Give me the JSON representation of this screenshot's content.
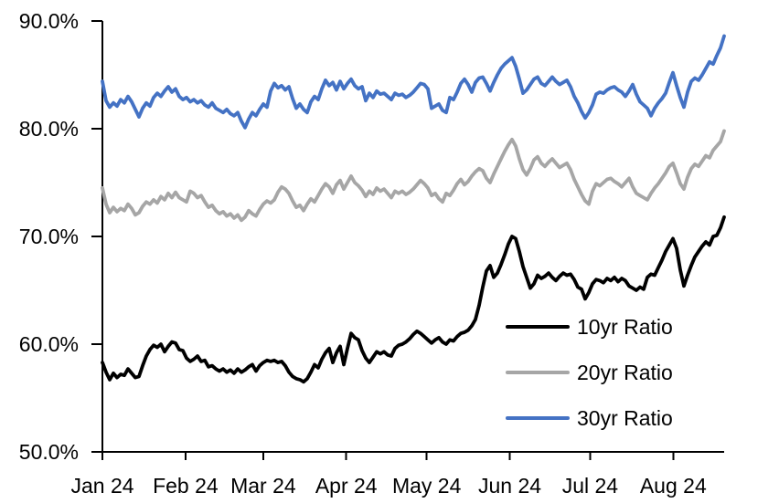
{
  "chart_data": {
    "type": "line",
    "title": "",
    "xlabel": "",
    "ylabel": "",
    "grid": false,
    "background_color": "#ffffff",
    "axis_color": "#000000",
    "x_axis": {
      "tick_labels": [
        "Jan 24",
        "Feb 24",
        "Mar 24",
        "Apr 24",
        "May 24",
        "Jun 24",
        "Jul 24",
        "Aug 24"
      ],
      "tick_days": [
        0,
        31,
        60,
        91,
        121,
        152,
        182,
        213
      ],
      "domain_days": [
        0,
        232
      ],
      "unit": "days since Jan 1 2024"
    },
    "y_axis": {
      "tick_labels": [
        "90.0%",
        "80.0%",
        "70.0%",
        "60.0%",
        "50.0%"
      ],
      "tick_values": [
        90,
        80,
        70,
        60,
        50
      ],
      "ylim": [
        50,
        90
      ],
      "unit": "%"
    },
    "x_sampling": {
      "start_day": 0,
      "end_day": 232,
      "points": 171,
      "note": "values evenly spaced in time"
    },
    "legend": {
      "position": "inside-lower-right",
      "entries": [
        "10yr Ratio",
        "20yr Ratio",
        "30yr Ratio"
      ]
    },
    "series": [
      {
        "name": "10yr Ratio",
        "color": "#000000",
        "values": [
          58.3,
          57.4,
          56.7,
          57.3,
          56.9,
          57.2,
          57.1,
          57.7,
          57.3,
          56.9,
          57.0,
          58.0,
          58.9,
          59.5,
          59.9,
          59.7,
          60.0,
          59.3,
          59.8,
          60.2,
          60.1,
          59.5,
          59.4,
          58.7,
          58.4,
          58.6,
          58.9,
          58.4,
          58.5,
          57.9,
          58.0,
          57.7,
          57.5,
          57.7,
          57.4,
          57.6,
          57.3,
          57.7,
          57.4,
          57.6,
          57.9,
          58.1,
          57.5,
          58.0,
          58.3,
          58.5,
          58.4,
          58.5,
          58.3,
          58.4,
          58.0,
          57.4,
          57.0,
          56.8,
          56.7,
          56.5,
          56.8,
          57.4,
          58.1,
          57.8,
          58.6,
          59.2,
          59.6,
          58.3,
          59.2,
          59.8,
          58.1,
          59.6,
          61.0,
          60.6,
          60.4,
          59.4,
          58.7,
          58.3,
          58.8,
          59.3,
          59.1,
          59.3,
          59.0,
          58.9,
          59.6,
          59.9,
          60.0,
          60.2,
          60.5,
          60.9,
          61.2,
          61.0,
          60.7,
          60.4,
          60.1,
          60.4,
          60.6,
          60.2,
          60.0,
          60.4,
          60.3,
          60.7,
          61.0,
          61.1,
          61.3,
          61.7,
          62.3,
          63.6,
          65.3,
          66.8,
          67.3,
          66.2,
          66.6,
          67.4,
          68.3,
          69.3,
          70.0,
          69.8,
          68.6,
          67.2,
          66.2,
          65.2,
          65.6,
          66.4,
          66.1,
          66.3,
          66.6,
          66.2,
          65.9,
          66.3,
          66.6,
          66.4,
          66.5,
          66.0,
          65.3,
          65.1,
          64.2,
          64.8,
          65.6,
          66.0,
          65.9,
          65.7,
          66.1,
          65.9,
          66.2,
          65.8,
          66.1,
          65.9,
          65.4,
          65.2,
          65.0,
          65.3,
          65.1,
          66.2,
          66.5,
          66.4,
          67.1,
          67.8,
          68.6,
          69.2,
          69.8,
          68.9,
          66.9,
          65.4,
          66.4,
          67.3,
          68.1,
          68.6,
          69.1,
          69.5,
          69.2,
          70.0,
          70.1,
          70.8,
          71.8
        ]
      },
      {
        "name": "20yr Ratio",
        "color": "#a6a6a6",
        "values": [
          74.5,
          73.0,
          72.2,
          72.7,
          72.3,
          72.6,
          72.4,
          73.0,
          72.6,
          72.0,
          72.2,
          72.8,
          73.2,
          73.0,
          73.4,
          73.1,
          73.7,
          73.4,
          74.0,
          73.6,
          74.1,
          73.6,
          73.4,
          73.2,
          74.2,
          74.0,
          73.6,
          73.8,
          73.2,
          72.7,
          72.9,
          72.4,
          72.1,
          72.3,
          71.9,
          72.1,
          71.7,
          72.0,
          71.5,
          71.8,
          72.4,
          72.1,
          71.9,
          72.5,
          73.0,
          73.3,
          73.1,
          73.4,
          74.1,
          74.6,
          74.4,
          74.0,
          73.3,
          72.7,
          72.9,
          72.4,
          73.0,
          73.5,
          73.2,
          73.8,
          74.4,
          74.9,
          74.6,
          74.0,
          74.8,
          75.2,
          74.4,
          75.0,
          75.6,
          75.0,
          74.7,
          74.3,
          73.7,
          74.2,
          73.9,
          74.5,
          74.2,
          74.4,
          74.0,
          73.6,
          74.2,
          74.0,
          74.2,
          73.9,
          74.1,
          74.4,
          74.8,
          75.2,
          74.9,
          74.5,
          73.8,
          74.0,
          73.5,
          73.2,
          74.0,
          73.8,
          74.3,
          74.9,
          75.3,
          74.8,
          75.1,
          75.6,
          76.0,
          76.3,
          76.1,
          75.4,
          75.0,
          75.8,
          76.5,
          77.2,
          77.9,
          78.5,
          79.0,
          78.4,
          77.2,
          76.2,
          75.7,
          76.3,
          77.1,
          77.4,
          76.8,
          76.5,
          76.9,
          77.2,
          76.8,
          76.4,
          76.6,
          76.8,
          76.2,
          75.3,
          74.6,
          73.9,
          73.3,
          73.0,
          74.2,
          74.9,
          74.7,
          75.0,
          75.3,
          75.4,
          75.1,
          74.9,
          74.6,
          75.0,
          75.4,
          74.6,
          74.0,
          73.8,
          73.6,
          73.4,
          74.0,
          74.5,
          74.9,
          75.4,
          75.9,
          76.5,
          76.8,
          75.9,
          74.9,
          74.4,
          75.5,
          76.3,
          76.7,
          76.5,
          77.0,
          77.5,
          77.3,
          78.0,
          78.4,
          78.8,
          79.8
        ]
      },
      {
        "name": "30yr Ratio",
        "color": "#4472c4",
        "values": [
          84.4,
          82.6,
          82.0,
          82.4,
          82.1,
          82.7,
          82.4,
          83.0,
          82.5,
          81.8,
          81.1,
          81.9,
          82.4,
          82.1,
          82.9,
          83.3,
          83.0,
          83.5,
          83.9,
          83.4,
          83.7,
          83.0,
          82.7,
          82.9,
          82.5,
          82.7,
          82.4,
          82.6,
          82.2,
          82.0,
          82.4,
          81.9,
          81.7,
          81.5,
          81.8,
          81.4,
          81.2,
          81.5,
          80.7,
          80.1,
          80.9,
          81.5,
          81.2,
          81.8,
          82.3,
          82.0,
          83.5,
          84.2,
          83.8,
          84.0,
          83.6,
          83.9,
          82.8,
          81.9,
          82.3,
          81.8,
          81.5,
          82.5,
          83.0,
          82.7,
          83.7,
          84.5,
          84.0,
          84.3,
          83.6,
          84.4,
          83.7,
          84.2,
          84.6,
          84.0,
          83.7,
          83.9,
          82.6,
          83.3,
          82.9,
          83.5,
          83.2,
          83.3,
          83.0,
          82.7,
          83.3,
          83.1,
          83.2,
          82.9,
          83.1,
          83.4,
          83.8,
          84.2,
          84.1,
          83.7,
          81.9,
          82.1,
          82.3,
          81.7,
          81.5,
          82.9,
          82.7,
          83.4,
          84.2,
          84.6,
          84.1,
          83.4,
          84.3,
          84.7,
          84.8,
          84.2,
          83.5,
          84.3,
          85.0,
          85.6,
          86.0,
          86.3,
          86.6,
          85.8,
          84.6,
          83.3,
          83.6,
          84.1,
          84.6,
          84.8,
          84.2,
          84.0,
          84.4,
          84.8,
          84.4,
          84.1,
          84.3,
          84.5,
          83.9,
          83.0,
          82.4,
          81.6,
          81.0,
          81.5,
          82.2,
          83.2,
          83.4,
          83.3,
          83.6,
          83.8,
          83.9,
          83.6,
          83.4,
          83.0,
          83.5,
          84.1,
          83.2,
          82.5,
          82.2,
          81.9,
          81.2,
          81.9,
          82.4,
          82.8,
          83.3,
          84.3,
          85.2,
          84.0,
          82.9,
          82.0,
          83.4,
          84.4,
          84.7,
          84.5,
          85.0,
          85.6,
          86.2,
          86.0,
          86.8,
          87.5,
          88.6
        ]
      }
    ]
  }
}
